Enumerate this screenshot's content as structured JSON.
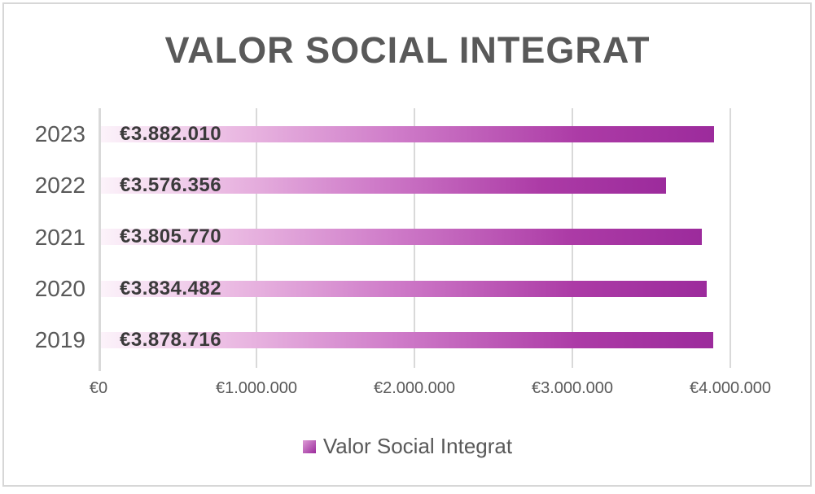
{
  "title": "VALOR SOCIAL INTEGRAT",
  "legend": {
    "label": "Valor Social Integrat"
  },
  "colors": {
    "border": "#d7d7d7",
    "title_text": "#595959",
    "category_text": "#595959",
    "tick_text": "#595959",
    "data_label_text": "#3a3a3a",
    "axis_line": "#d9d9d9",
    "gridline": "#d9d9d9",
    "bar_gradient_start": "#fcf3fa",
    "bar_gradient_mid": "#cf7cc9",
    "bar_gradient_end": "#9c2b9c",
    "legend_swatch_start": "#dd9cd6",
    "legend_swatch_end": "#9c2b9c"
  },
  "chart_data": {
    "type": "bar",
    "orientation": "horizontal",
    "title": "VALOR SOCIAL INTEGRAT",
    "categories": [
      "2023",
      "2022",
      "2021",
      "2020",
      "2019"
    ],
    "series": [
      {
        "name": "Valor Social Integrat",
        "values": [
          3882010,
          3576356,
          3805770,
          3834482,
          3878716
        ],
        "data_labels": [
          "€3.882.010",
          "€3.576.356",
          "€3.805.770",
          "€3.834.482",
          "€3.878.716"
        ]
      }
    ],
    "x_axis": {
      "min": 0,
      "max": 4000000,
      "ticks": [
        "€0",
        "€1.000.000",
        "€2.000.000",
        "€3.000.000",
        "€4.000.000"
      ]
    },
    "grid": true,
    "legend_position": "bottom"
  }
}
